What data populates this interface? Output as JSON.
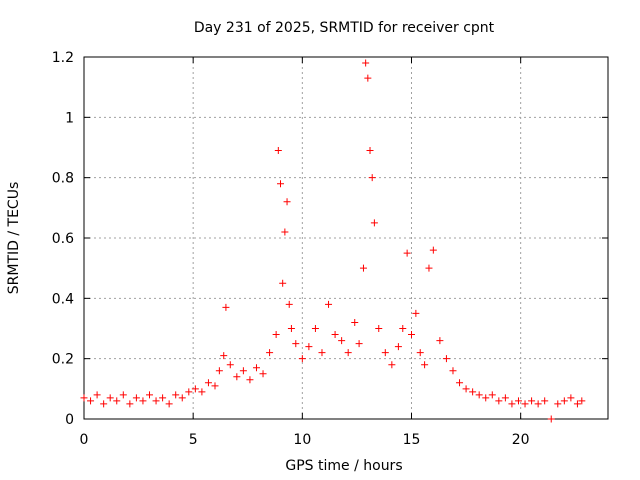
{
  "chart_data": {
    "type": "scatter",
    "title": "Day 231 of 2025, SRMTID for receiver cpnt",
    "xlabel": "GPS time / hours",
    "ylabel": "SRMTID / TECUs",
    "xlim": [
      0,
      24
    ],
    "ylim": [
      0,
      1.2
    ],
    "x_ticks": [
      0,
      5,
      10,
      15,
      20
    ],
    "x_tick_labels": [
      "0",
      "5",
      "10",
      "15",
      "20"
    ],
    "y_ticks": [
      0,
      0.2,
      0.4,
      0.6,
      0.8,
      1.0,
      1.2
    ],
    "y_tick_labels": [
      "0",
      "0.2",
      "0.4",
      "0.6",
      "0.8",
      "1",
      "1.2"
    ],
    "grid": true,
    "marker": "+",
    "color": "#ff0000",
    "series": [
      {
        "name": "SRMTID",
        "x": [
          0.0,
          0.3,
          0.6,
          0.9,
          1.2,
          1.5,
          1.8,
          2.1,
          2.4,
          2.7,
          3.0,
          3.3,
          3.6,
          3.9,
          4.2,
          4.5,
          4.8,
          5.1,
          5.4,
          5.7,
          6.0,
          6.2,
          6.4,
          6.5,
          6.7,
          7.0,
          7.3,
          7.6,
          7.9,
          8.2,
          8.5,
          8.8,
          8.9,
          9.0,
          9.1,
          9.2,
          9.3,
          9.4,
          9.5,
          9.7,
          10.0,
          10.3,
          10.6,
          10.9,
          11.2,
          11.5,
          11.8,
          12.1,
          12.4,
          12.6,
          12.8,
          12.9,
          13.0,
          13.1,
          13.2,
          13.3,
          13.5,
          13.8,
          14.1,
          14.4,
          14.6,
          14.8,
          15.0,
          15.2,
          15.4,
          15.6,
          15.8,
          16.0,
          16.3,
          16.6,
          16.9,
          17.2,
          17.5,
          17.8,
          18.1,
          18.4,
          18.7,
          19.0,
          19.3,
          19.6,
          19.9,
          20.2,
          20.5,
          20.8,
          21.1,
          21.4,
          21.7,
          22.0,
          22.3,
          22.6,
          22.8
        ],
        "y": [
          0.07,
          0.06,
          0.08,
          0.05,
          0.07,
          0.06,
          0.08,
          0.05,
          0.07,
          0.06,
          0.08,
          0.06,
          0.07,
          0.05,
          0.08,
          0.07,
          0.09,
          0.1,
          0.09,
          0.12,
          0.11,
          0.16,
          0.21,
          0.37,
          0.18,
          0.14,
          0.16,
          0.13,
          0.17,
          0.15,
          0.22,
          0.28,
          0.89,
          0.78,
          0.45,
          0.62,
          0.72,
          0.38,
          0.3,
          0.25,
          0.2,
          0.24,
          0.3,
          0.22,
          0.38,
          0.28,
          0.26,
          0.22,
          0.32,
          0.25,
          0.5,
          1.18,
          1.13,
          0.89,
          0.8,
          0.65,
          0.3,
          0.22,
          0.18,
          0.24,
          0.3,
          0.55,
          0.28,
          0.35,
          0.22,
          0.18,
          0.5,
          0.56,
          0.26,
          0.2,
          0.16,
          0.12,
          0.1,
          0.09,
          0.08,
          0.07,
          0.08,
          0.06,
          0.07,
          0.05,
          0.06,
          0.05,
          0.06,
          0.05,
          0.06,
          0.0,
          0.05,
          0.06,
          0.07,
          0.05,
          0.06
        ]
      }
    ]
  }
}
